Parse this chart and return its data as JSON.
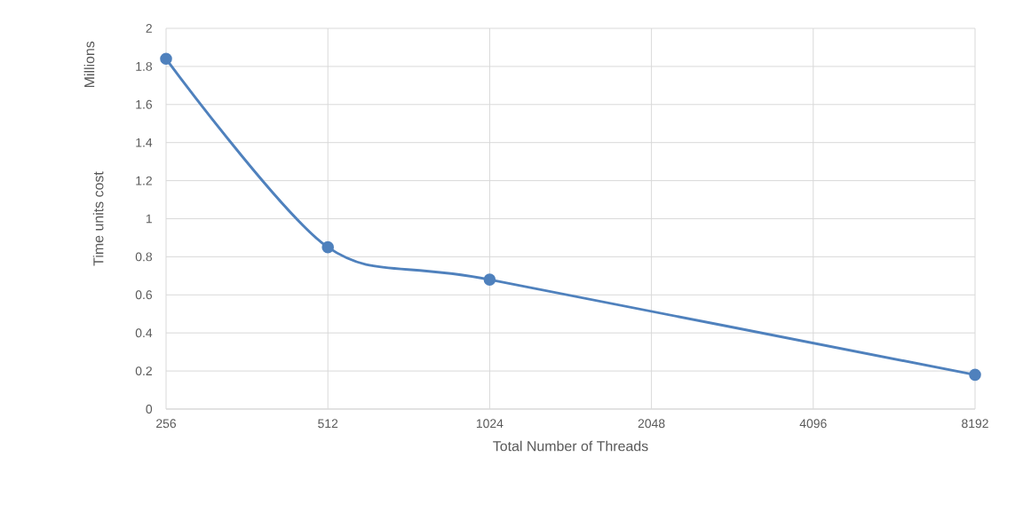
{
  "chart_data": {
    "type": "line",
    "xlabel": "Total Number of  Threads",
    "ylabel": "Time units cost",
    "annotations": [
      "Millions"
    ],
    "categories": [
      "256",
      "512",
      "1024",
      "2048",
      "4096",
      "8192"
    ],
    "series": [
      {
        "color": "#4f81bd",
        "values": [
          1.84,
          0.85,
          0.68,
          null,
          null,
          0.18
        ]
      }
    ],
    "ylim": [
      0,
      2
    ],
    "yticks": [
      0,
      0.2,
      0.4,
      0.6,
      0.8,
      1,
      1.2,
      1.4,
      1.6,
      1.8,
      2
    ],
    "grid": true,
    "marker": "circle"
  }
}
